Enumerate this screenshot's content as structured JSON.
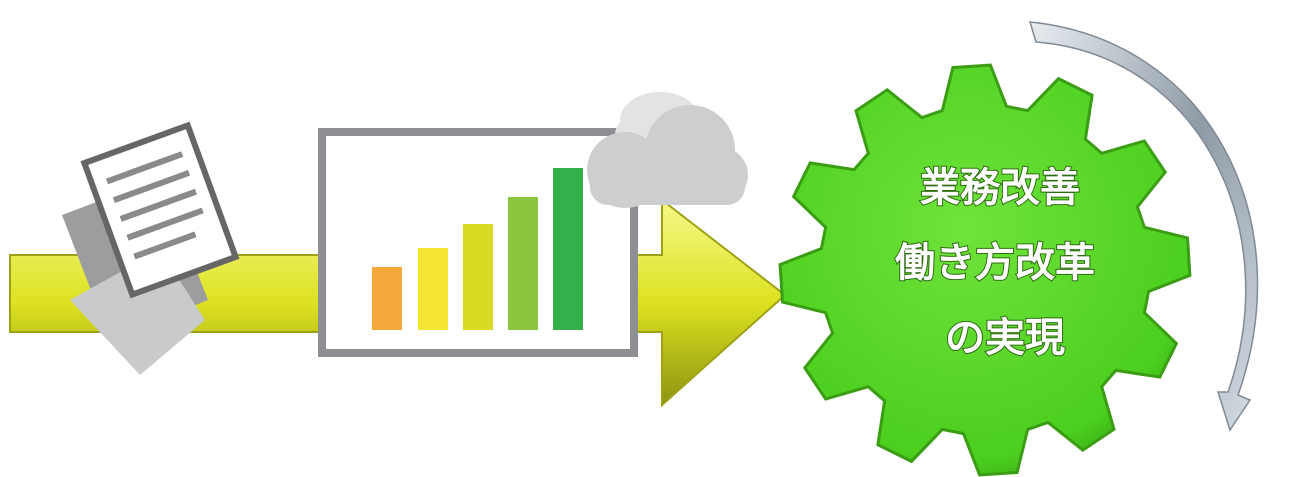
{
  "gear": {
    "lines": [
      "業務改善",
      "働き方改革",
      "の実現"
    ]
  }
}
